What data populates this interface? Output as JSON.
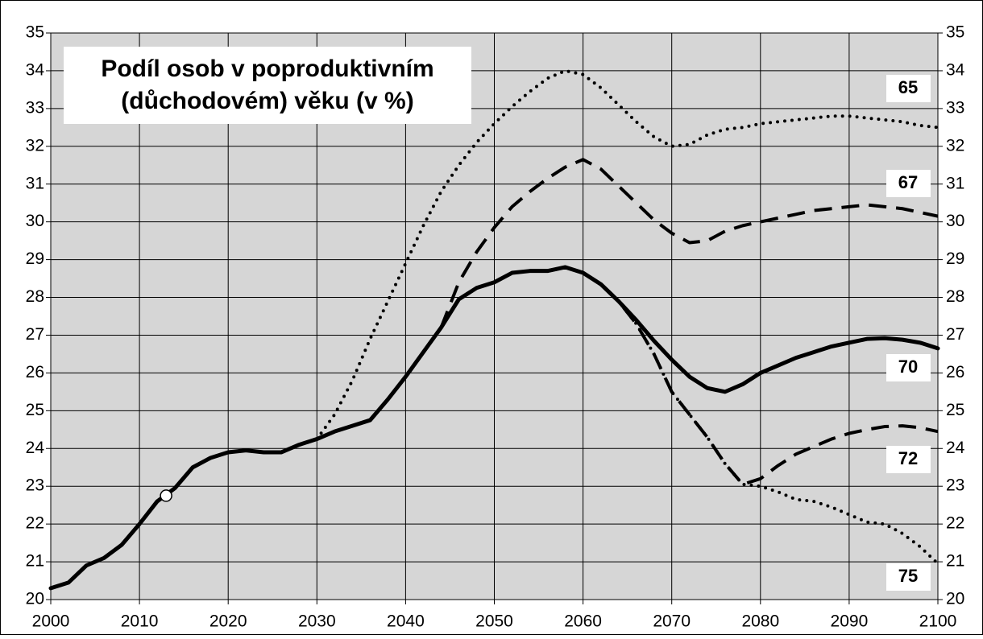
{
  "chart_data": {
    "type": "line",
    "title": [
      "Podíl osob v poproduktivním",
      "(důchodovém) věku (v %)"
    ],
    "x": [
      2000,
      2002,
      2004,
      2006,
      2008,
      2010,
      2012,
      2014,
      2016,
      2018,
      2020,
      2022,
      2024,
      2026,
      2028,
      2030,
      2032,
      2034,
      2036,
      2038,
      2040,
      2042,
      2044,
      2046,
      2048,
      2050,
      2052,
      2054,
      2056,
      2058,
      2060,
      2062,
      2064,
      2066,
      2068,
      2070,
      2072,
      2074,
      2076,
      2078,
      2080,
      2082,
      2084,
      2086,
      2088,
      2090,
      2092,
      2094,
      2096,
      2098,
      2100
    ],
    "xlim": [
      2000,
      2100
    ],
    "xticks": [
      2000,
      2010,
      2020,
      2030,
      2040,
      2050,
      2060,
      2070,
      2080,
      2090,
      2100
    ],
    "ylim": [
      20,
      35
    ],
    "yticks": [
      20,
      21,
      22,
      23,
      24,
      25,
      26,
      27,
      28,
      29,
      30,
      31,
      32,
      33,
      34,
      35
    ],
    "grid": true,
    "series": [
      {
        "name": "65",
        "color": "#000000",
        "style": "dotted",
        "values": [
          null,
          null,
          null,
          null,
          null,
          null,
          null,
          null,
          null,
          null,
          null,
          null,
          null,
          null,
          null,
          24.25,
          24.9,
          25.8,
          26.9,
          27.9,
          28.9,
          29.9,
          30.8,
          31.5,
          32.1,
          32.6,
          33.05,
          33.45,
          33.8,
          34.0,
          33.9,
          33.55,
          33.1,
          32.65,
          32.25,
          32.0,
          32.05,
          32.3,
          32.45,
          32.5,
          32.6,
          32.65,
          32.7,
          32.75,
          32.8,
          32.8,
          32.75,
          32.7,
          32.65,
          32.55,
          32.5
        ]
      },
      {
        "name": "67",
        "color": "#000000",
        "style": "dashed",
        "values": [
          null,
          null,
          null,
          null,
          null,
          null,
          null,
          null,
          null,
          null,
          null,
          null,
          null,
          null,
          null,
          null,
          null,
          null,
          null,
          null,
          null,
          null,
          27.2,
          28.4,
          29.2,
          29.85,
          30.4,
          30.8,
          31.15,
          31.45,
          31.65,
          31.4,
          30.95,
          30.5,
          30.05,
          29.7,
          29.45,
          29.5,
          29.75,
          29.9,
          30.0,
          30.1,
          30.2,
          30.3,
          30.35,
          30.4,
          30.45,
          30.4,
          30.35,
          30.25,
          30.15
        ]
      },
      {
        "name": "70",
        "color": "#000000",
        "style": "solid",
        "values": [
          20.3,
          20.45,
          20.9,
          21.1,
          21.45,
          22.0,
          22.6,
          22.95,
          23.5,
          23.75,
          23.9,
          23.95,
          23.9,
          23.9,
          24.1,
          24.25,
          24.45,
          24.6,
          24.75,
          25.3,
          25.9,
          26.55,
          27.2,
          27.95,
          28.25,
          28.4,
          28.65,
          28.7,
          28.7,
          28.8,
          28.65,
          28.35,
          27.9,
          27.4,
          26.85,
          26.35,
          25.9,
          25.6,
          25.5,
          25.7,
          26.0,
          26.2,
          26.4,
          26.55,
          26.7,
          26.8,
          26.9,
          26.92,
          26.88,
          26.8,
          26.65
        ]
      },
      {
        "name": "72",
        "color": "#000000",
        "style": "dashed",
        "values": [
          null,
          null,
          null,
          null,
          null,
          null,
          null,
          null,
          null,
          null,
          null,
          null,
          null,
          null,
          null,
          null,
          null,
          null,
          null,
          null,
          null,
          null,
          27.2,
          27.95,
          28.25,
          28.4,
          28.65,
          28.7,
          28.7,
          28.8,
          28.65,
          28.35,
          27.9,
          27.3,
          26.5,
          25.5,
          24.9,
          24.3,
          23.6,
          23.05,
          23.2,
          23.55,
          23.85,
          24.05,
          24.25,
          24.4,
          24.5,
          24.58,
          24.6,
          24.55,
          24.45
        ]
      },
      {
        "name": "75",
        "color": "#000000",
        "style": "dotted",
        "values": [
          null,
          null,
          null,
          null,
          null,
          null,
          null,
          null,
          null,
          null,
          null,
          null,
          null,
          null,
          null,
          null,
          null,
          null,
          null,
          null,
          null,
          null,
          27.2,
          27.95,
          28.25,
          28.4,
          28.65,
          28.7,
          28.7,
          28.8,
          28.65,
          28.35,
          27.9,
          27.3,
          26.5,
          25.5,
          24.9,
          24.3,
          23.6,
          23.05,
          23.0,
          22.85,
          22.65,
          22.6,
          22.45,
          22.25,
          22.05,
          22.0,
          21.75,
          21.4,
          20.95
        ]
      }
    ],
    "marker": {
      "x": 2013,
      "y": 22.75
    }
  }
}
